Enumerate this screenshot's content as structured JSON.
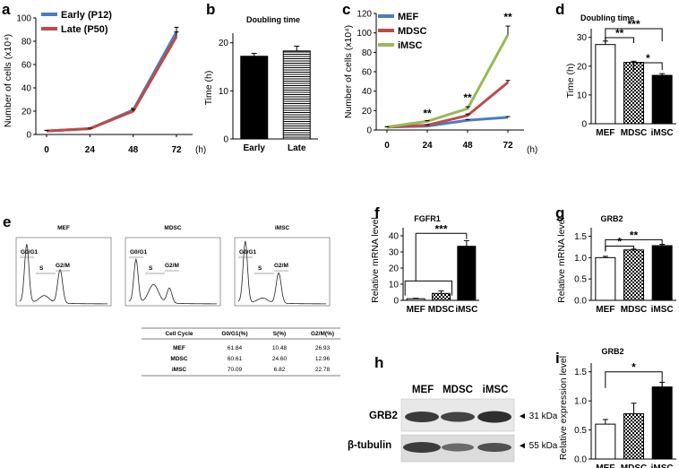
{
  "panels": {
    "a": "a",
    "b": "b",
    "c": "c",
    "d": "d",
    "e": "e",
    "f": "f",
    "g": "g",
    "h": "h",
    "i": "i"
  },
  "colors": {
    "early": "#4a7ebb",
    "late": "#be4b48",
    "mef": "#4a7ebb",
    "mdsc": "#be4b48",
    "imsc": "#98b954"
  },
  "chart_data": [
    {
      "id": "a",
      "type": "line",
      "title": "",
      "xlabel": "(h)",
      "ylabel": "Number of cells (x10⁴)",
      "x": [
        0,
        24,
        48,
        72
      ],
      "x_ticks": [
        "0",
        "24",
        "48",
        "72"
      ],
      "y_ticks": [
        "0",
        "20",
        "40",
        "60",
        "80",
        "100"
      ],
      "ylim": [
        0,
        100
      ],
      "series": [
        {
          "name": "Early (P12)",
          "values": [
            3,
            5,
            21,
            88
          ],
          "errors": [
            0.5,
            0.5,
            1.5,
            4
          ]
        },
        {
          "name": "Late (P50)",
          "values": [
            3,
            5,
            20,
            84
          ],
          "errors": [
            0.5,
            0.5,
            1.5,
            4
          ]
        }
      ]
    },
    {
      "id": "b",
      "type": "bar",
      "title": "Doubling time",
      "ylabel": "Time (h)",
      "categories": [
        "Early",
        "Late"
      ],
      "values": [
        17.2,
        18.3
      ],
      "errors": [
        0.6,
        1.0
      ],
      "y_ticks": [
        "0",
        "10",
        "20"
      ],
      "ylim": [
        0,
        22
      ]
    },
    {
      "id": "c",
      "type": "line",
      "xlabel": "(h)",
      "ylabel": "Number of cells (x10⁴)",
      "x": [
        0,
        24,
        48,
        72
      ],
      "x_ticks": [
        "0",
        "24",
        "48",
        "72"
      ],
      "y_ticks": [
        "0",
        "20",
        "40",
        "60",
        "80",
        "100",
        "120"
      ],
      "ylim": [
        0,
        120
      ],
      "series": [
        {
          "name": "MEF",
          "values": [
            3,
            4,
            10,
            13
          ],
          "errors": [
            0.3,
            0.3,
            0.8,
            0.8
          ]
        },
        {
          "name": "MDSC",
          "values": [
            3,
            5,
            15,
            49
          ],
          "errors": [
            0.3,
            0.4,
            1.5,
            2
          ]
        },
        {
          "name": "iMSC",
          "values": [
            3,
            9,
            22,
            98
          ],
          "errors": [
            0.3,
            0.6,
            2,
            9
          ]
        }
      ],
      "annotations": [
        "**",
        "**",
        "**"
      ]
    },
    {
      "id": "d",
      "type": "bar",
      "title": "Doubling time",
      "ylabel": "Time (h)",
      "categories": [
        "MEF",
        "MDSC",
        "iMSC"
      ],
      "values": [
        27.5,
        21.3,
        16.8
      ],
      "errors": [
        1.2,
        0.4,
        0.6
      ],
      "y_ticks": [
        "0",
        "10",
        "20",
        "30"
      ],
      "ylim": [
        0,
        33
      ],
      "annotations": [
        "**",
        "***",
        "*"
      ]
    },
    {
      "id": "f",
      "type": "bar",
      "title": "FGFR1",
      "ylabel": "Relative mRNA level",
      "categories": [
        "MEF",
        "MDSC",
        "iMSC"
      ],
      "values": [
        1,
        4.3,
        33.5
      ],
      "errors": [
        0.3,
        1.5,
        3.5
      ],
      "y_ticks": [
        "0",
        "10",
        "20",
        "30",
        "40"
      ],
      "ylim": [
        0,
        45
      ],
      "annotations": [
        "***"
      ]
    },
    {
      "id": "g",
      "type": "bar",
      "title": "GRB2",
      "ylabel": "Relative mRNA level",
      "categories": [
        "MEF",
        "MDSC",
        "iMSC"
      ],
      "values": [
        1.0,
        1.18,
        1.28
      ],
      "errors": [
        0.03,
        0.02,
        0.03
      ],
      "y_ticks": [
        "0.0",
        "0.5",
        "1.0",
        "1.5"
      ],
      "ylim": [
        0,
        1.7
      ],
      "annotations": [
        "*",
        "**"
      ]
    },
    {
      "id": "i",
      "type": "bar",
      "title": "GRB2",
      "ylabel": "Relative expression level",
      "categories": [
        "MEF",
        "MDSC",
        "iMSC"
      ],
      "values": [
        0.6,
        0.78,
        1.24
      ],
      "errors": [
        0.08,
        0.18,
        0.08
      ],
      "y_ticks": [
        "0.0",
        "0.5",
        "1.0",
        "1.5"
      ],
      "ylim": [
        0,
        1.65
      ],
      "annotations": [
        "*"
      ]
    },
    {
      "id": "e",
      "type": "table",
      "histograms": {
        "titles": [
          "MEF",
          "MDSC",
          "iMSC"
        ],
        "gate_labels": [
          "G0/G1",
          "S",
          "G2/M"
        ]
      },
      "columns": [
        "Cell Cycle",
        "G0/G1(%)",
        "S(%)",
        "G2/M(%)"
      ],
      "rows": [
        [
          "MEF",
          "61.84",
          "10.48",
          "26.93"
        ],
        [
          "MDSC",
          "60.61",
          "24.60",
          "12.96"
        ],
        [
          "iMSC",
          "70.09",
          "6.82",
          "22.78"
        ]
      ]
    }
  ],
  "blot": {
    "lanes": [
      "MEF",
      "MDSC",
      "iMSC"
    ],
    "proteins": [
      "GRB2",
      "β-tubulin"
    ],
    "sizes": [
      "◄ 31 kDa",
      "◄ 55 kDa"
    ]
  }
}
